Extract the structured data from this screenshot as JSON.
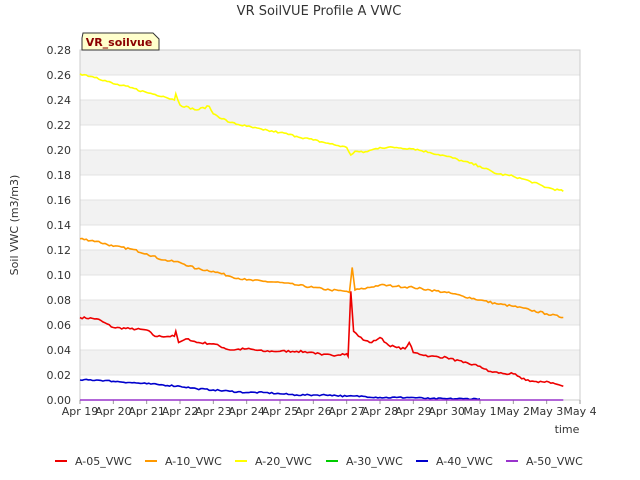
{
  "chart_data": {
    "type": "line",
    "title": "VR SoilVUE Profile A VWC",
    "site_label": "VR_soilvue",
    "xlabel": "time",
    "ylabel": "Soil VWC (m3/m3)",
    "ylim": [
      0.0,
      0.28
    ],
    "xlim": [
      "2024-04-19",
      "2024-05-04"
    ],
    "grid": "horizontal bands",
    "legend_position": "bottom",
    "x_ticks": [
      "Apr 19",
      "Apr 20",
      "Apr 21",
      "Apr 22",
      "Apr 23",
      "Apr 24",
      "Apr 25",
      "Apr 26",
      "Apr 27",
      "Apr 28",
      "Apr 29",
      "Apr 30",
      "May 1",
      "May 2",
      "May 3",
      "May 4"
    ],
    "y_ticks": [
      "0.00",
      "0.02",
      "0.04",
      "0.06",
      "0.08",
      "0.10",
      "0.12",
      "0.14",
      "0.16",
      "0.18",
      "0.20",
      "0.22",
      "0.24",
      "0.26",
      "0.28"
    ],
    "series": [
      {
        "name": "A-05_VWC",
        "color": "#ee0000",
        "points": [
          [
            "2024-04-19",
            0.066
          ],
          [
            "2024-04-19T12:00",
            0.065
          ],
          [
            "2024-04-20",
            0.058
          ],
          [
            "2024-04-20T12:00",
            0.057
          ],
          [
            "2024-04-21",
            0.056
          ],
          [
            "2024-04-21T06:00",
            0.051
          ],
          [
            "2024-04-21T20:00",
            0.051
          ],
          [
            "2024-04-21T21:00",
            0.055
          ],
          [
            "2024-04-21T23:00",
            0.046
          ],
          [
            "2024-04-22T06:00",
            0.049
          ],
          [
            "2024-04-22T12:00",
            0.046
          ],
          [
            "2024-04-23",
            0.045
          ],
          [
            "2024-04-23T12:00",
            0.04
          ],
          [
            "2024-04-24",
            0.041
          ],
          [
            "2024-04-24T12:00",
            0.039
          ],
          [
            "2024-04-25",
            0.039
          ],
          [
            "2024-04-25T12:00",
            0.039
          ],
          [
            "2024-04-26",
            0.038
          ],
          [
            "2024-04-26T06:00",
            0.036
          ],
          [
            "2024-04-26T18:00",
            0.036
          ],
          [
            "2024-04-26T21:00",
            0.037
          ],
          [
            "2024-04-27",
            0.037
          ],
          [
            "2024-04-27T01:00",
            0.035
          ],
          [
            "2024-04-27T03:00",
            0.087
          ],
          [
            "2024-04-27T05:00",
            0.055
          ],
          [
            "2024-04-27T12:00",
            0.048
          ],
          [
            "2024-04-27T18:00",
            0.046
          ],
          [
            "2024-04-28",
            0.05
          ],
          [
            "2024-04-28T06:00",
            0.044
          ],
          [
            "2024-04-28T12:00",
            0.042
          ],
          [
            "2024-04-28T18:00",
            0.041
          ],
          [
            "2024-04-28T21:00",
            0.046
          ],
          [
            "2024-04-29",
            0.038
          ],
          [
            "2024-04-29T12:00",
            0.035
          ],
          [
            "2024-04-30",
            0.034
          ],
          [
            "2024-04-30T12:00",
            0.03
          ],
          [
            "2024-05-01",
            0.027
          ],
          [
            "2024-05-01T06:00",
            0.023
          ],
          [
            "2024-05-01T18:00",
            0.021
          ],
          [
            "2024-05-02",
            0.021
          ],
          [
            "2024-05-02T06:00",
            0.017
          ],
          [
            "2024-05-02T18:00",
            0.014
          ],
          [
            "2024-05-03",
            0.015
          ],
          [
            "2024-05-03T06:00",
            0.013
          ],
          [
            "2024-05-03T12:00",
            0.011
          ]
        ]
      },
      {
        "name": "A-10_VWC",
        "color": "#ff9900",
        "points": [
          [
            "2024-04-19",
            0.129
          ],
          [
            "2024-04-19T12:00",
            0.127
          ],
          [
            "2024-04-20",
            0.123
          ],
          [
            "2024-04-20T12:00",
            0.121
          ],
          [
            "2024-04-21",
            0.117
          ],
          [
            "2024-04-21T12:00",
            0.112
          ],
          [
            "2024-04-22",
            0.11
          ],
          [
            "2024-04-22T12:00",
            0.105
          ],
          [
            "2024-04-23",
            0.103
          ],
          [
            "2024-04-23T12:00",
            0.099
          ],
          [
            "2024-04-24",
            0.096
          ],
          [
            "2024-04-24T12:00",
            0.095
          ],
          [
            "2024-04-25",
            0.094
          ],
          [
            "2024-04-25T12:00",
            0.092
          ],
          [
            "2024-04-26",
            0.09
          ],
          [
            "2024-04-26T12:00",
            0.088
          ],
          [
            "2024-04-27",
            0.087
          ],
          [
            "2024-04-27T02:00",
            0.086
          ],
          [
            "2024-04-27T04:00",
            0.106
          ],
          [
            "2024-04-27T06:00",
            0.088
          ],
          [
            "2024-04-27T12:00",
            0.089
          ],
          [
            "2024-04-28",
            0.092
          ],
          [
            "2024-04-28T12:00",
            0.091
          ],
          [
            "2024-04-29",
            0.09
          ],
          [
            "2024-04-29T12:00",
            0.088
          ],
          [
            "2024-04-30",
            0.086
          ],
          [
            "2024-04-30T12:00",
            0.083
          ],
          [
            "2024-05-01",
            0.08
          ],
          [
            "2024-05-01T12:00",
            0.077
          ],
          [
            "2024-05-02",
            0.075
          ],
          [
            "2024-05-02T12:00",
            0.072
          ],
          [
            "2024-05-03",
            0.069
          ],
          [
            "2024-05-03T12:00",
            0.066
          ]
        ]
      },
      {
        "name": "A-20_VWC",
        "color": "#ffff00",
        "points": [
          [
            "2024-04-19",
            0.261
          ],
          [
            "2024-04-19T12:00",
            0.258
          ],
          [
            "2024-04-20",
            0.253
          ],
          [
            "2024-04-20T12:00",
            0.25
          ],
          [
            "2024-04-21",
            0.246
          ],
          [
            "2024-04-21T12:00",
            0.243
          ],
          [
            "2024-04-21T20:00",
            0.24
          ],
          [
            "2024-04-21T21:00",
            0.245
          ],
          [
            "2024-04-22",
            0.236
          ],
          [
            "2024-04-22T12:00",
            0.232
          ],
          [
            "2024-04-22T21:00",
            0.235
          ],
          [
            "2024-04-23",
            0.229
          ],
          [
            "2024-04-23T12:00",
            0.222
          ],
          [
            "2024-04-24",
            0.219
          ],
          [
            "2024-04-24T12:00",
            0.216
          ],
          [
            "2024-04-25",
            0.214
          ],
          [
            "2024-04-25T12:00",
            0.211
          ],
          [
            "2024-04-26",
            0.208
          ],
          [
            "2024-04-26T12:00",
            0.205
          ],
          [
            "2024-04-27",
            0.202
          ],
          [
            "2024-04-27T03:00",
            0.196
          ],
          [
            "2024-04-27T06:00",
            0.199
          ],
          [
            "2024-04-27T12:00",
            0.198
          ],
          [
            "2024-04-28",
            0.202
          ],
          [
            "2024-04-28T12:00",
            0.202
          ],
          [
            "2024-04-29",
            0.201
          ],
          [
            "2024-04-29T12:00",
            0.198
          ],
          [
            "2024-04-30",
            0.195
          ],
          [
            "2024-04-30T12:00",
            0.191
          ],
          [
            "2024-05-01",
            0.187
          ],
          [
            "2024-05-01T12:00",
            0.181
          ],
          [
            "2024-05-02",
            0.179
          ],
          [
            "2024-05-02T12:00",
            0.175
          ],
          [
            "2024-05-03",
            0.17
          ],
          [
            "2024-05-03T12:00",
            0.167
          ]
        ]
      },
      {
        "name": "A-30_VWC",
        "color": "#00cc00",
        "points": []
      },
      {
        "name": "A-40_VWC",
        "color": "#0000cc",
        "points": [
          [
            "2024-04-19",
            0.016
          ],
          [
            "2024-04-19T12:00",
            0.016
          ],
          [
            "2024-04-20",
            0.015
          ],
          [
            "2024-04-20T12:00",
            0.014
          ],
          [
            "2024-04-21",
            0.013
          ],
          [
            "2024-04-21T12:00",
            0.012
          ],
          [
            "2024-04-22",
            0.011
          ],
          [
            "2024-04-22T12:00",
            0.009
          ],
          [
            "2024-04-23",
            0.008
          ],
          [
            "2024-04-23T12:00",
            0.007
          ],
          [
            "2024-04-24",
            0.006
          ],
          [
            "2024-04-24T12:00",
            0.006
          ],
          [
            "2024-04-25",
            0.005
          ],
          [
            "2024-04-25T12:00",
            0.004
          ],
          [
            "2024-04-26",
            0.004
          ],
          [
            "2024-04-26T12:00",
            0.004
          ],
          [
            "2024-04-27",
            0.003
          ],
          [
            "2024-04-27T12:00",
            0.003
          ],
          [
            "2024-04-28",
            0.002
          ],
          [
            "2024-04-28T12:00",
            0.002
          ],
          [
            "2024-04-29",
            0.002
          ],
          [
            "2024-04-29T12:00",
            0.001
          ],
          [
            "2024-04-30",
            0.001
          ],
          [
            "2024-04-30T12:00",
            0.001
          ],
          [
            "2024-05-01",
            0.001
          ]
        ]
      },
      {
        "name": "A-50_VWC",
        "color": "#9933cc",
        "points": [
          [
            "2024-04-19",
            0.0
          ],
          [
            "2024-05-03T12:00",
            0.0
          ]
        ]
      }
    ]
  }
}
